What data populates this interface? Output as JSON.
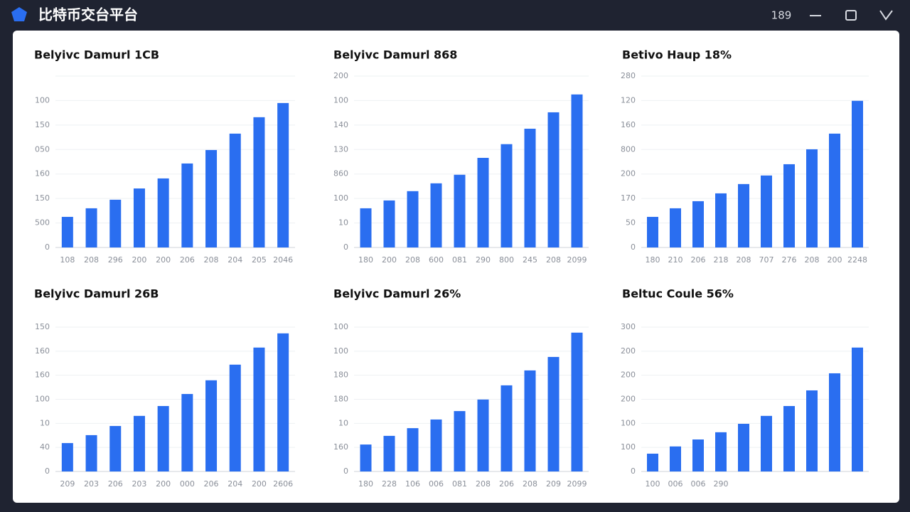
{
  "window": {
    "title": "比特币交台平台",
    "counter": "189"
  },
  "chart_data": [
    {
      "type": "bar",
      "title": "Belyivc Damurl 1CB",
      "color": "#2a6ef0",
      "ylim": [
        0,
        7
      ],
      "y_labels": [
        "0",
        "500",
        "150",
        "160",
        "050",
        "150",
        "100"
      ],
      "categories": [
        "108",
        "208",
        "296",
        "200",
        "200",
        "206",
        "208",
        "204",
        "205",
        "2046"
      ],
      "values": [
        1.25,
        1.6,
        1.95,
        2.41,
        2.82,
        3.43,
        3.98,
        4.65,
        5.32,
        5.9
      ]
    },
    {
      "type": "bar",
      "title": "Belyivc Damurl 868",
      "color": "#2a6ef0",
      "ylim": [
        0,
        7
      ],
      "y_labels": [
        "0",
        "10",
        "100",
        "860",
        "130",
        "140",
        "100",
        "200"
      ],
      "categories": [
        "180",
        "200",
        "208",
        "600",
        "081",
        "290",
        "800",
        "245",
        "208",
        "2099"
      ],
      "values": [
        1.6,
        1.92,
        2.3,
        2.62,
        2.97,
        3.66,
        4.22,
        4.85,
        5.52,
        6.25
      ]
    },
    {
      "type": "bar",
      "title": "Betivo Haup 18%",
      "color": "#2a6ef0",
      "ylim": [
        0,
        7
      ],
      "y_labels": [
        "0",
        "50",
        "170",
        "200",
        "800",
        "160",
        "120",
        "280"
      ],
      "categories": [
        "180",
        "210",
        "206",
        "218",
        "208",
        "707",
        "276",
        "208",
        "200",
        "2248"
      ],
      "values": [
        1.25,
        1.6,
        1.89,
        2.21,
        2.59,
        2.94,
        3.4,
        4.01,
        4.65,
        5.99
      ]
    },
    {
      "type": "bar",
      "title": "Belyivc Damurl 26B",
      "color": "#2a6ef0",
      "ylim": [
        0,
        6
      ],
      "y_labels": [
        "0",
        "40",
        "10",
        "100",
        "160",
        "160",
        "150"
      ],
      "categories": [
        "209",
        "203",
        "206",
        "203",
        "200",
        "000",
        "206",
        "204",
        "200",
        "2606"
      ],
      "values": [
        1.18,
        1.51,
        1.89,
        2.31,
        2.72,
        3.22,
        3.79,
        4.44,
        5.15,
        5.74
      ]
    },
    {
      "type": "bar",
      "title": "Belyivc Damurl 26%",
      "color": "#2a6ef0",
      "ylim": [
        0,
        6
      ],
      "y_labels": [
        "0",
        "160",
        "10",
        "180",
        "180",
        "100",
        "100"
      ],
      "categories": [
        "180",
        "228",
        "106",
        "006",
        "081",
        "208",
        "206",
        "208",
        "209",
        "2099"
      ],
      "values": [
        1.12,
        1.48,
        1.8,
        2.16,
        2.51,
        2.99,
        3.58,
        4.2,
        4.76,
        5.77
      ]
    },
    {
      "type": "bar",
      "title": "Beltuc Coule 56%",
      "color": "#2a6ef0",
      "ylim": [
        0,
        6
      ],
      "y_labels": [
        "0",
        "100",
        "100",
        "200",
        "200",
        "200",
        "300"
      ],
      "categories": [
        "100",
        "006",
        "006",
        "290",
        null,
        null,
        null,
        null,
        null,
        null
      ],
      "values": [
        0.74,
        1.04,
        1.33,
        1.63,
        1.98,
        2.31,
        2.72,
        3.37,
        4.08,
        5.15
      ]
    }
  ]
}
